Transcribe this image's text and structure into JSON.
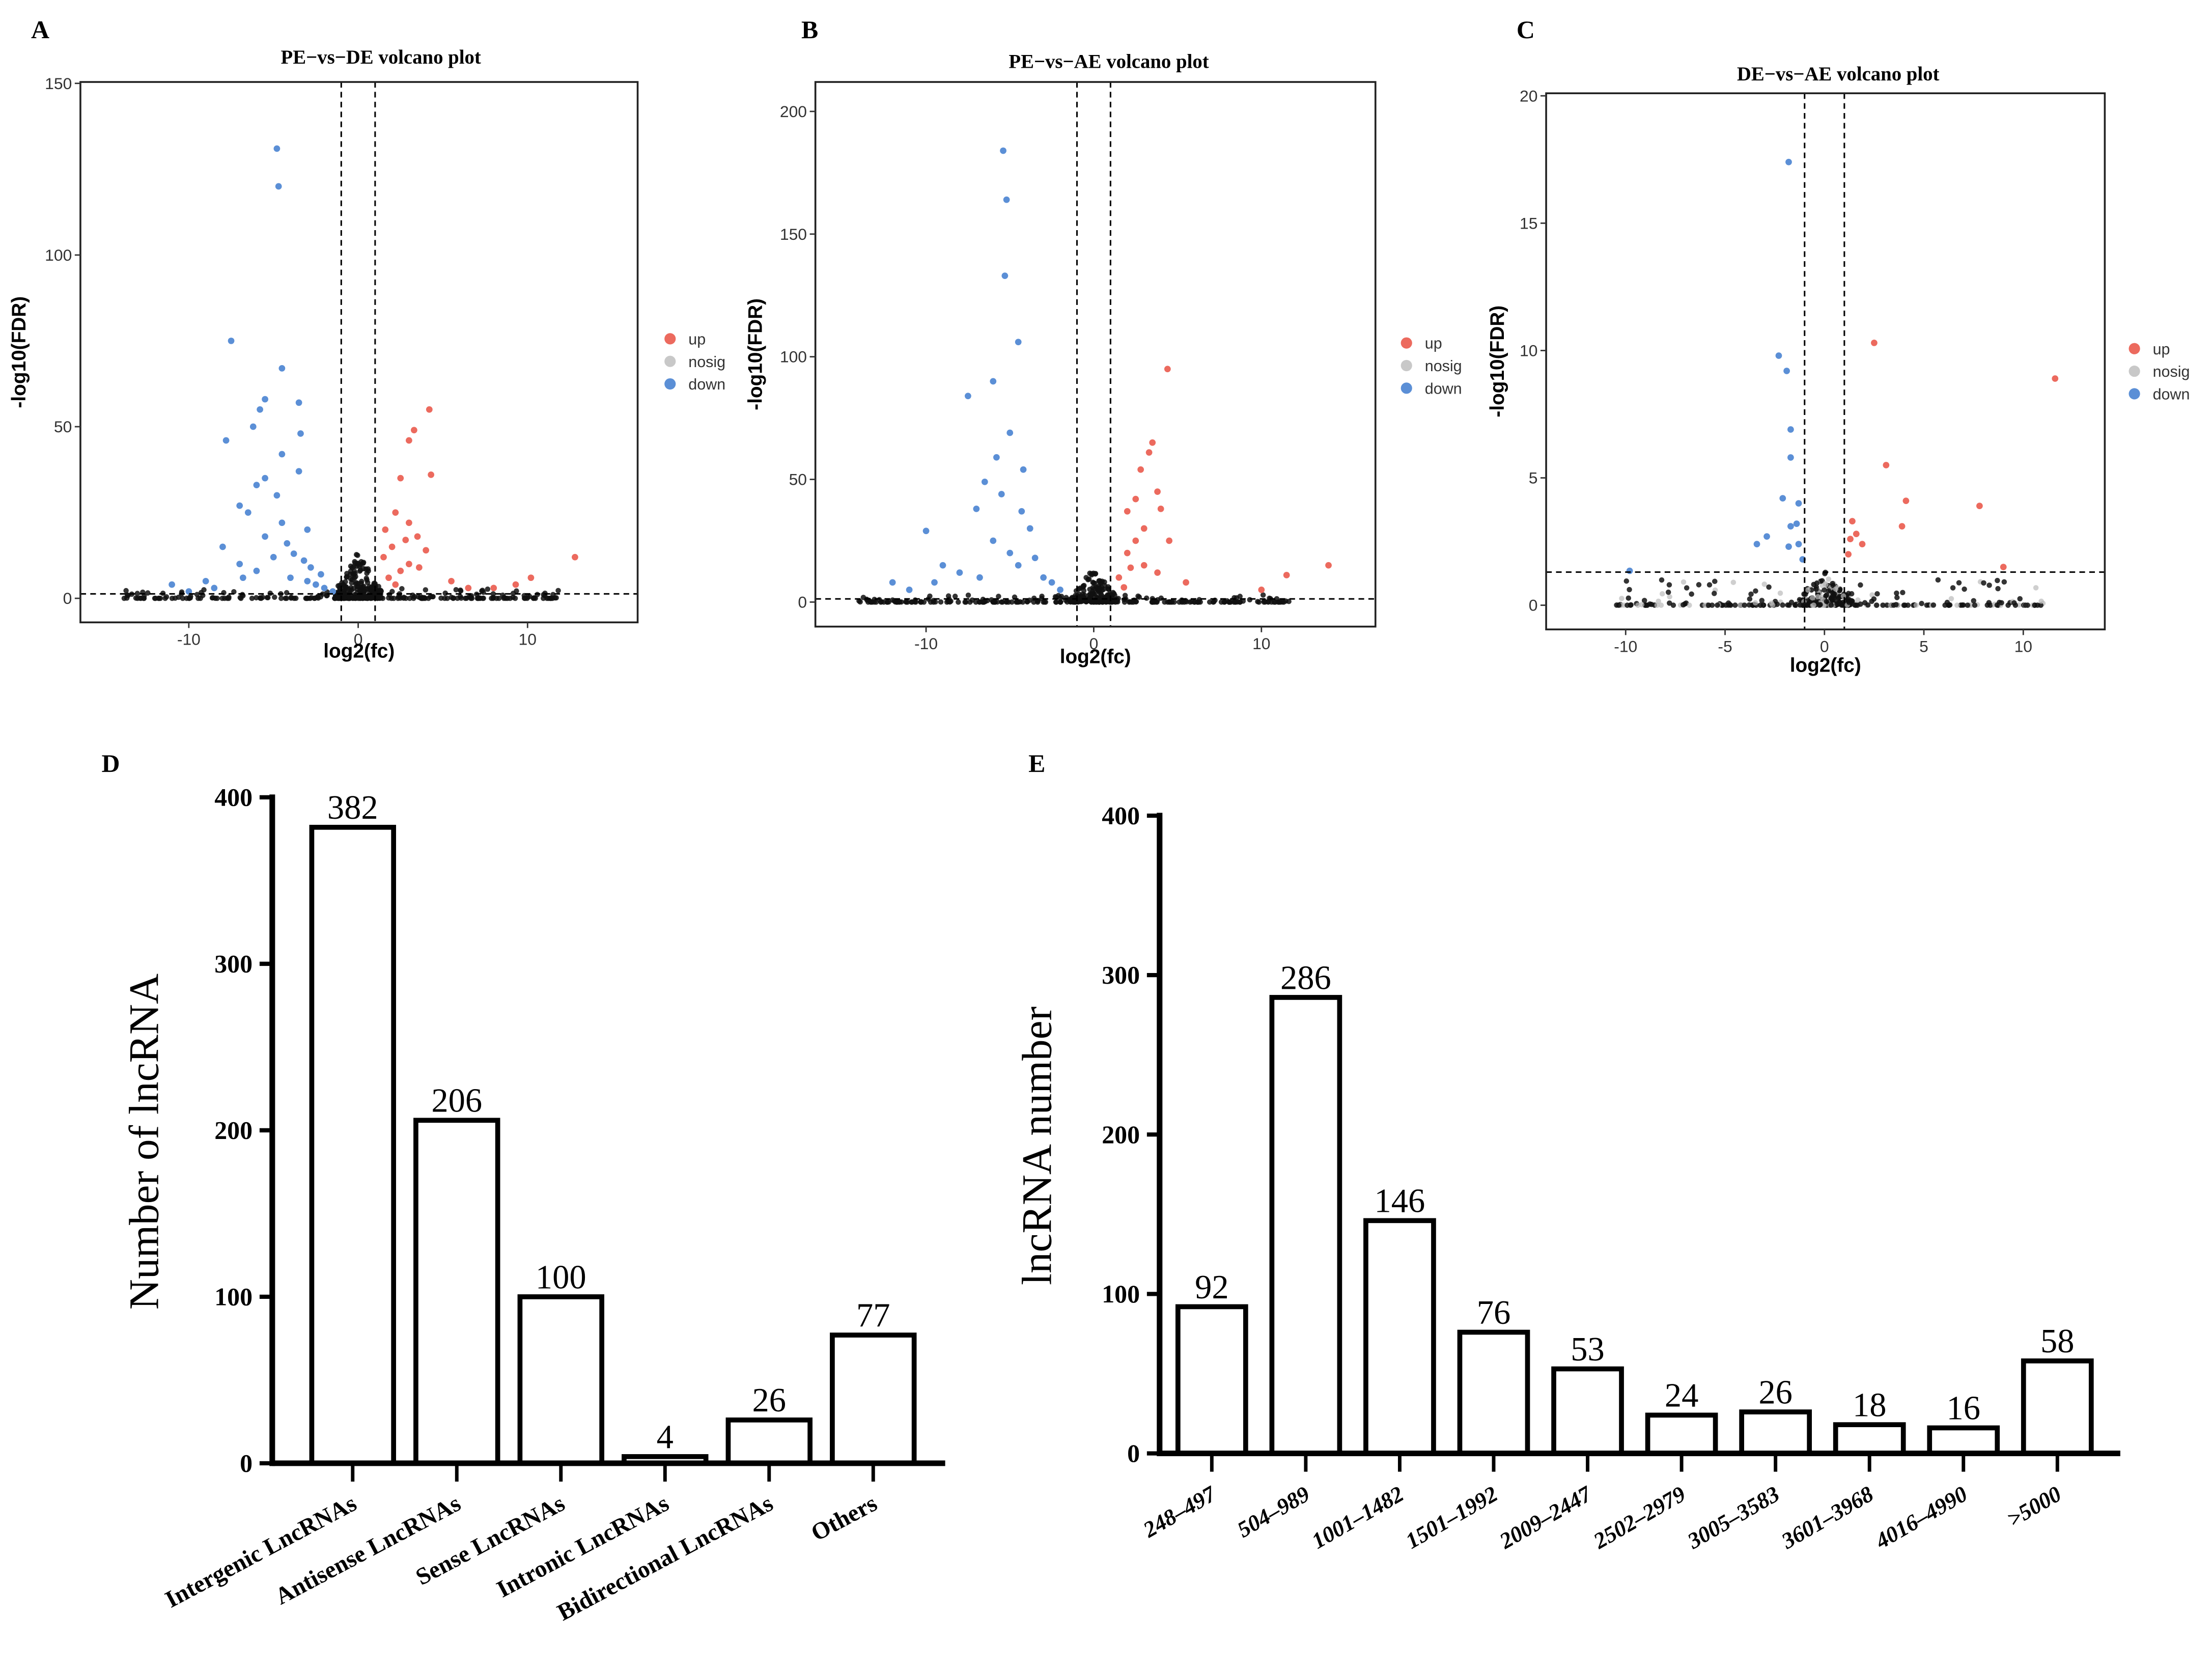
{
  "chart_data": [
    {
      "type": "scatter",
      "panel": "A",
      "title": "PE−vs−DE volcano plot",
      "xlabel": "log2(fc)",
      "ylabel": "-log10(FDR)",
      "xlim": [
        -16.4,
        16.5
      ],
      "ylim": [
        -7,
        150.4
      ],
      "xticks": [
        "-10",
        "0",
        "10"
      ],
      "xtick_vals": [
        -10,
        0,
        10
      ],
      "yticks": [
        "0",
        "50",
        "100",
        "150"
      ],
      "ytick_vals": [
        0,
        50,
        100,
        150
      ],
      "vlines": [
        -1,
        1
      ],
      "hline": 1.3,
      "legend": [
        {
          "label": "up",
          "color": "#ec6a5e"
        },
        {
          "label": "nosig",
          "color": "#c8c8c8"
        },
        {
          "label": "down",
          "color": "#5b8fd6"
        }
      ],
      "down": [
        [
          -4.8,
          131
        ],
        [
          -4.7,
          120
        ],
        [
          -7.5,
          75
        ],
        [
          -4.5,
          67
        ],
        [
          -5.5,
          58
        ],
        [
          -5.8,
          55
        ],
        [
          -3.5,
          57
        ],
        [
          -6.2,
          50
        ],
        [
          -3.4,
          48
        ],
        [
          -7.8,
          46
        ],
        [
          -4.5,
          42
        ],
        [
          -3.5,
          37
        ],
        [
          -5.5,
          35
        ],
        [
          -6,
          33
        ],
        [
          -4.8,
          30
        ],
        [
          -7,
          27
        ],
        [
          -6.5,
          25
        ],
        [
          -4.5,
          22
        ],
        [
          -3,
          20
        ],
        [
          -8,
          15
        ],
        [
          -5,
          12
        ],
        [
          -3.8,
          13
        ],
        [
          -11,
          4
        ],
        [
          -9,
          5
        ],
        [
          -6,
          8
        ],
        [
          -4,
          6
        ],
        [
          -2.5,
          4
        ],
        [
          -2,
          3
        ],
        [
          -3,
          5
        ],
        [
          -1.5,
          2
        ],
        [
          -7,
          10
        ],
        [
          -5.5,
          18
        ],
        [
          -2.8,
          9
        ],
        [
          -3.2,
          11
        ],
        [
          -2.2,
          7
        ],
        [
          -4.2,
          16
        ],
        [
          -6.8,
          6
        ],
        [
          -10,
          2
        ],
        [
          -8.5,
          3
        ]
      ],
      "up": [
        [
          4.2,
          55
        ],
        [
          3.3,
          49
        ],
        [
          3,
          46
        ],
        [
          4.3,
          36
        ],
        [
          2.5,
          35
        ],
        [
          2.2,
          25
        ],
        [
          3,
          22
        ],
        [
          3.5,
          18
        ],
        [
          2,
          15
        ],
        [
          4,
          14
        ],
        [
          12.8,
          12
        ],
        [
          10.2,
          6
        ],
        [
          9.3,
          4
        ],
        [
          8,
          3
        ],
        [
          5.5,
          5
        ],
        [
          3,
          10
        ],
        [
          2.5,
          8
        ],
        [
          1.5,
          12
        ],
        [
          1.8,
          6
        ],
        [
          2.8,
          17
        ],
        [
          1.6,
          20
        ],
        [
          3.6,
          9
        ],
        [
          2.2,
          4
        ],
        [
          6.5,
          3
        ]
      ],
      "bg": {
        "xmin": -14,
        "xmax": 12,
        "n": 420
      }
    },
    {
      "type": "scatter",
      "panel": "B",
      "title": "PE−vs−AE volcano plot",
      "xlabel": "log2(fc)",
      "ylabel": "-log10(FDR)",
      "xlim": [
        -16.6,
        16.8
      ],
      "ylim": [
        -10,
        212
      ],
      "xticks": [
        "-10",
        "0",
        "10"
      ],
      "xtick_vals": [
        -10,
        0,
        10
      ],
      "yticks": [
        "0",
        "50",
        "100",
        "150",
        "200"
      ],
      "ytick_vals": [
        0,
        50,
        100,
        150,
        200
      ],
      "vlines": [
        -1,
        1
      ],
      "hline": 1.3,
      "legend": [
        {
          "label": "up",
          "color": "#ec6a5e"
        },
        {
          "label": "nosig",
          "color": "#c8c8c8"
        },
        {
          "label": "down",
          "color": "#5b8fd6"
        }
      ],
      "down": [
        [
          -5.4,
          184
        ],
        [
          -5.2,
          164
        ],
        [
          -5.3,
          133
        ],
        [
          -4.5,
          106
        ],
        [
          -6,
          90
        ],
        [
          -7.5,
          84
        ],
        [
          -5,
          69
        ],
        [
          -5.8,
          59
        ],
        [
          -4.2,
          54
        ],
        [
          -6.5,
          49
        ],
        [
          -5.5,
          44
        ],
        [
          -7,
          38
        ],
        [
          -4.3,
          37
        ],
        [
          -3.8,
          30
        ],
        [
          -10,
          29
        ],
        [
          -12,
          8
        ],
        [
          -9,
          15
        ],
        [
          -6,
          25
        ],
        [
          -5,
          20
        ],
        [
          -3,
          10
        ],
        [
          -2,
          5
        ],
        [
          -8,
          12
        ],
        [
          -11,
          5
        ],
        [
          -4.5,
          15
        ],
        [
          -3.5,
          18
        ],
        [
          -2.5,
          8
        ],
        [
          -6.8,
          10
        ],
        [
          -9.5,
          8
        ]
      ],
      "up": [
        [
          4.4,
          95
        ],
        [
          3.5,
          65
        ],
        [
          3.3,
          61
        ],
        [
          2.8,
          54
        ],
        [
          3.8,
          45
        ],
        [
          2.5,
          42
        ],
        [
          4,
          38
        ],
        [
          2,
          37
        ],
        [
          3,
          30
        ],
        [
          4.5,
          25
        ],
        [
          14,
          15
        ],
        [
          11.5,
          11
        ],
        [
          10,
          5
        ],
        [
          2,
          20
        ],
        [
          3,
          15
        ],
        [
          1.5,
          10
        ],
        [
          2.5,
          25
        ],
        [
          3.8,
          12
        ],
        [
          1.8,
          6
        ],
        [
          5.5,
          8
        ],
        [
          2.2,
          14
        ]
      ],
      "bg": {
        "xmin": -14,
        "xmax": 12,
        "n": 420
      }
    },
    {
      "type": "scatter",
      "panel": "C",
      "title": "DE−vs−AE volcano plot",
      "xlabel": "log2(fc)",
      "ylabel": "-log10(FDR)",
      "xlim": [
        -14,
        14.1
      ],
      "ylim": [
        -0.95,
        20.1
      ],
      "xticks": [
        "-10",
        "-5",
        "0",
        "5",
        "10"
      ],
      "xtick_vals": [
        -10,
        -5,
        0,
        5,
        10
      ],
      "yticks": [
        "0",
        "5",
        "10",
        "15",
        "20"
      ],
      "ytick_vals": [
        0,
        5,
        10,
        15,
        20
      ],
      "vlines": [
        -1,
        1
      ],
      "hline": 1.3,
      "legend": [
        {
          "label": "up",
          "color": "#ec6a5e"
        },
        {
          "label": "nosig",
          "color": "#c8c8c8"
        },
        {
          "label": "down",
          "color": "#5b8fd6"
        }
      ],
      "down": [
        [
          -1.8,
          17.4
        ],
        [
          -2.3,
          9.8
        ],
        [
          -1.9,
          9.2
        ],
        [
          -1.7,
          6.9
        ],
        [
          -1.7,
          5.8
        ],
        [
          -2.1,
          4.2
        ],
        [
          -1.3,
          4
        ],
        [
          -1.4,
          3.2
        ],
        [
          -1.7,
          3.1
        ],
        [
          -2.9,
          2.7
        ],
        [
          -3.4,
          2.4
        ],
        [
          -1.8,
          2.3
        ],
        [
          -1.3,
          2.4
        ],
        [
          -1.1,
          1.8
        ],
        [
          -9.8,
          1.35
        ]
      ],
      "up": [
        [
          2.5,
          10.3
        ],
        [
          11.6,
          8.9
        ],
        [
          3.1,
          5.5
        ],
        [
          4.1,
          4.1
        ],
        [
          7.8,
          3.9
        ],
        [
          3.9,
          3.1
        ],
        [
          1.4,
          3.3
        ],
        [
          1.6,
          2.8
        ],
        [
          1.3,
          2.6
        ],
        [
          1.9,
          2.4
        ],
        [
          1.2,
          2
        ],
        [
          9,
          1.5
        ]
      ],
      "bg": {
        "xmin": -10.5,
        "xmax": 11,
        "n": 420
      }
    },
    {
      "type": "bar",
      "panel": "D",
      "ylabel": "Number of lncRNA",
      "xlabel": "",
      "ylim": [
        0,
        400
      ],
      "yticks": [
        "0",
        "100",
        "200",
        "300",
        "400"
      ],
      "ytick_vals": [
        0,
        100,
        200,
        300,
        400
      ],
      "categories": [
        "Intergenic LncRNAs",
        "Antisense LncRNAs",
        "Sense LncRNAs",
        "Intronic LncRNAs",
        "Bidirectional LncRNAs",
        "Others"
      ],
      "values": [
        382,
        206,
        100,
        4,
        26,
        77
      ],
      "labels": [
        "382",
        "206",
        "100",
        "4",
        "26",
        "77"
      ]
    },
    {
      "type": "bar",
      "panel": "E",
      "ylabel": "lncRNA number",
      "xlabel": "",
      "ylim": [
        0,
        400
      ],
      "yticks": [
        "0",
        "100",
        "200",
        "300",
        "400"
      ],
      "ytick_vals": [
        0,
        100,
        200,
        300,
        400
      ],
      "categories": [
        "248–497",
        "504–989",
        "1001–1482",
        "1501–1992",
        "2009–2447",
        "2502–2979",
        "3005–3583",
        "3601–3968",
        "4016–4990",
        ">5000"
      ],
      "values": [
        92,
        286,
        146,
        76,
        53,
        24,
        26,
        18,
        16,
        58
      ],
      "labels": [
        "92",
        "286",
        "146",
        "76",
        "53",
        "24",
        "26",
        "18",
        "16",
        "58"
      ]
    }
  ],
  "panel_labels": [
    "A",
    "B",
    "C",
    "D",
    "E"
  ]
}
